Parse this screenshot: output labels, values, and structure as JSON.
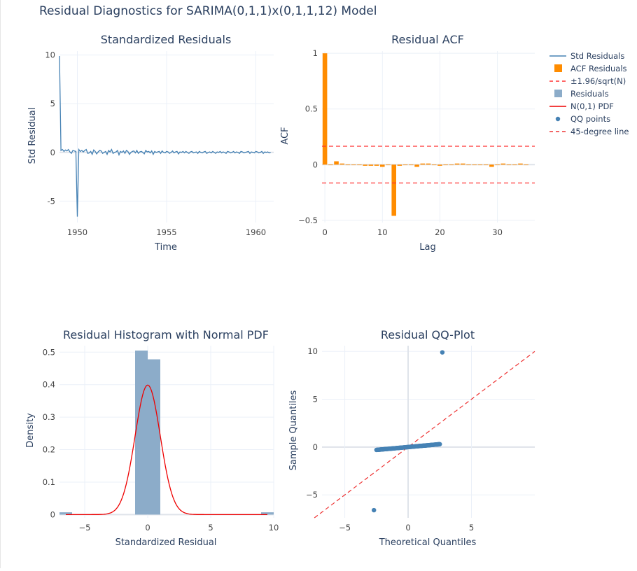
{
  "figure": {
    "title": "Residual Diagnostics for SARIMA(0,1,1)x(0,1,1,12) Model",
    "legend_position": "right",
    "legend": [
      {
        "label": "Std Residuals",
        "kind": "line",
        "color": "#4682b4"
      },
      {
        "label": "ACF Residuals",
        "kind": "bar",
        "color": "#ff8c00"
      },
      {
        "label": "±1.96/sqrt(N)",
        "kind": "dash",
        "color": "#ff3333"
      },
      {
        "label": "Residuals",
        "kind": "bar",
        "color": "#8cacc9"
      },
      {
        "label": "N(0,1) PDF",
        "kind": "line",
        "color": "#ee0000"
      },
      {
        "label": "QQ points",
        "kind": "dot",
        "color": "#4682b4"
      },
      {
        "label": "45-degree line",
        "kind": "dash",
        "color": "#ee3333"
      }
    ]
  },
  "chart_data": [
    {
      "type": "line",
      "title": "Standardized Residuals",
      "xlabel": "Time",
      "ylabel": "Std Residual",
      "color": "#4682b4",
      "xlim": [
        1949.0,
        1961.0
      ],
      "ylim": [
        -7.2,
        10.4
      ],
      "xticks": [
        1950,
        1955,
        1960
      ],
      "yticks": [
        -5,
        0,
        5,
        10
      ],
      "x_start": 1949.0,
      "x_step": 0.08333,
      "y": [
        9.9,
        0.2,
        0.3,
        0.1,
        0.25,
        0.15,
        0.3,
        0.05,
        -0.1,
        0.2,
        0.15,
        0.1,
        -6.6,
        0.3,
        0.1,
        0.2,
        0.05,
        0.2,
        0.3,
        -0.1,
        -0.05,
        0.1,
        -0.2,
        0.25,
        0.1,
        -0.15,
        0.05,
        0.2,
        0.15,
        -0.1,
        0.0,
        0.1,
        -0.2,
        0.2,
        0.05,
        0.3,
        -0.1,
        0.0,
        0.05,
        0.2,
        -0.25,
        0.1,
        0.0,
        0.15,
        -0.1,
        0.2,
        0.1,
        -0.2,
        0.0,
        0.1,
        0.15,
        -0.05,
        0.2,
        -0.1,
        0.05,
        0.1,
        0.0,
        -0.15,
        0.2,
        0.05,
        0.1,
        -0.05,
        0.15,
        -0.2,
        0.1,
        0.0,
        0.05,
        0.1,
        -0.1,
        0.15,
        0.0,
        -0.05,
        0.1,
        0.05,
        -0.1,
        0.0,
        0.15,
        -0.05,
        0.05,
        0.1,
        -0.15,
        0.05,
        0.0,
        0.1,
        -0.05,
        0.1,
        0.0,
        -0.1,
        0.05,
        0.1,
        -0.05,
        0.0,
        0.05,
        -0.1,
        0.1,
        0.0,
        -0.05,
        0.05,
        0.1,
        -0.1,
        0.0,
        0.05,
        -0.05,
        0.1,
        0.0,
        -0.1,
        0.05,
        0.0,
        0.1,
        -0.05,
        0.05,
        0.0,
        -0.1,
        0.1,
        0.05,
        -0.05,
        0.0,
        0.1,
        -0.05,
        0.05,
        0.0,
        -0.1,
        0.1,
        0.05,
        -0.05,
        0.0,
        0.05,
        0.1,
        -0.1,
        0.05,
        0.0,
        -0.05,
        0.1,
        0.05,
        -0.05,
        0.0,
        0.1,
        -0.1,
        0.05,
        0.0,
        0.05,
        -0.05,
        0.0
      ]
    },
    {
      "type": "bar",
      "title": "Residual ACF",
      "xlabel": "Lag",
      "ylabel": "ACF",
      "color": "#ff8c00",
      "xlim": [
        -0.5,
        36.5
      ],
      "ylim": [
        -0.52,
        1.02
      ],
      "xticks": [
        0,
        10,
        20,
        30
      ],
      "yticks": [
        -0.5,
        0,
        0.5,
        1
      ],
      "yticklabels": [
        "−0.5",
        "0",
        "0.5",
        "1"
      ],
      "lags": [
        0,
        1,
        2,
        3,
        4,
        5,
        6,
        7,
        8,
        9,
        10,
        11,
        12,
        13,
        14,
        15,
        16,
        17,
        18,
        19,
        20,
        21,
        22,
        23,
        24,
        25,
        26,
        27,
        28,
        29,
        30,
        31,
        32,
        33,
        34,
        35
      ],
      "values": [
        1.0,
        0.0,
        0.03,
        0.01,
        0.0,
        0.0,
        0.0,
        -0.01,
        -0.01,
        -0.01,
        -0.02,
        0.0,
        -0.46,
        -0.01,
        0.0,
        0.0,
        -0.02,
        0.01,
        0.01,
        0.0,
        -0.01,
        0.0,
        0.0,
        0.01,
        0.01,
        0.0,
        0.0,
        0.0,
        0.0,
        -0.02,
        0.0,
        0.01,
        0.0,
        0.0,
        0.01,
        0.0
      ],
      "conf_band": 0.165,
      "band_color": "#ff3333"
    },
    {
      "type": "bar",
      "title": "Residual Histogram with Normal PDF",
      "xlabel": "Standardized Residual",
      "ylabel": "Density",
      "color": "#8cacc9",
      "xlim": [
        -7.0,
        10.0
      ],
      "ylim": [
        -0.01,
        0.52
      ],
      "xticks": [
        -5,
        0,
        5,
        10
      ],
      "xticklabels": [
        "−5",
        "0",
        "5",
        "10"
      ],
      "yticks": [
        0,
        0.1,
        0.2,
        0.3,
        0.4,
        0.5
      ],
      "bins": [
        {
          "x0": -7.0,
          "x1": -6.0,
          "density": 0.007
        },
        {
          "x0": -1.0,
          "x1": 0.0,
          "density": 0.505
        },
        {
          "x0": 0.0,
          "x1": 1.0,
          "density": 0.478
        },
        {
          "x0": 9.0,
          "x1": 10.0,
          "density": 0.007
        }
      ],
      "pdf": {
        "name": "N(0,1) PDF",
        "color": "#ee0000",
        "mean": 0,
        "sd": 1
      }
    },
    {
      "type": "scatter",
      "title": "Residual QQ-Plot",
      "xlabel": "Theoretical Quantiles",
      "ylabel": "Sample Quantiles",
      "color": "#4682b4",
      "xlim": [
        -6.8,
        10.0
      ],
      "ylim": [
        -7.4,
        10.6
      ],
      "xticks": [
        -5,
        0,
        5
      ],
      "xticklabels": [
        "−5",
        "0",
        "5"
      ],
      "yticks": [
        -5,
        0,
        5,
        10
      ],
      "yticklabels": [
        "−5",
        "0",
        "5",
        "10"
      ],
      "theoretical_range": [
        -2.5,
        2.5
      ],
      "sample_range": [
        -0.3,
        0.3
      ],
      "n_points": 142,
      "outliers": [
        {
          "x": 2.7,
          "y": 9.9
        },
        {
          "x": -2.7,
          "y": -6.6
        }
      ],
      "ref_line": {
        "name": "45-degree line",
        "color": "#ee3333",
        "from": -7.4,
        "to": 10.0
      }
    }
  ]
}
